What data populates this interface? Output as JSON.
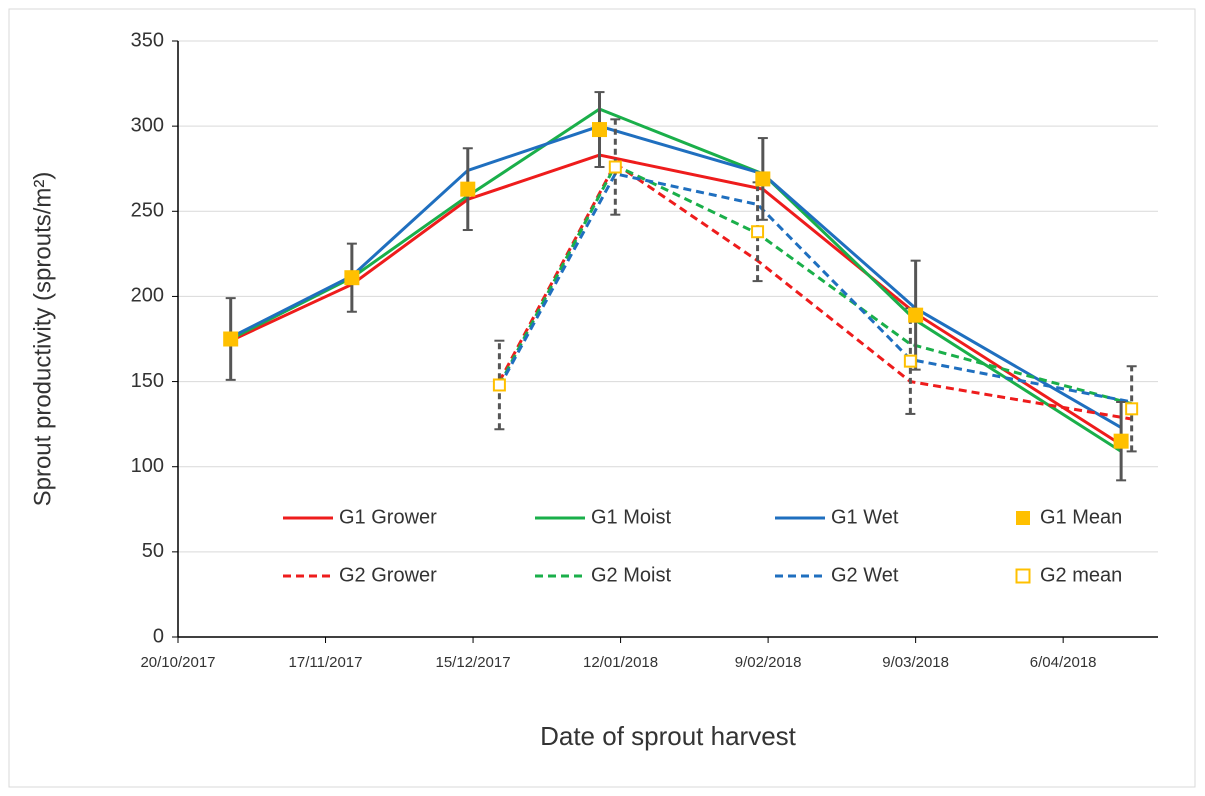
{
  "chart_data": {
    "type": "line",
    "ylabel": "Sprout productivity (sprouts/m²)",
    "xlabel": "Date of sprout harvest",
    "xlim": [
      "2017-10-20",
      "2018-04-24"
    ],
    "xticks": [
      {
        "value": "2017-10-20",
        "label": "20/10/2017"
      },
      {
        "value": "2017-11-17",
        "label": "17/11/2017"
      },
      {
        "value": "2017-12-15",
        "label": "15/12/2017"
      },
      {
        "value": "2018-01-12",
        "label": "12/01/2018"
      },
      {
        "value": "2018-02-09",
        "label": "9/02/2018"
      },
      {
        "value": "2018-03-09",
        "label": "9/03/2018"
      },
      {
        "value": "2018-04-06",
        "label": "6/04/2018"
      }
    ],
    "ylim": [
      0,
      350
    ],
    "yticks": [
      0,
      50,
      100,
      150,
      200,
      250,
      300,
      350
    ],
    "grid": true,
    "legend": "inside-bottom",
    "series": [
      {
        "name": "G1 Grower",
        "color": "#ee1c1c",
        "style": "solid",
        "x": [
          "2017-10-30",
          "2017-11-22",
          "2017-12-14",
          "2018-01-08",
          "2018-02-08",
          "2018-03-09",
          "2018-04-17"
        ],
        "values": [
          174,
          207,
          257,
          283,
          263,
          190,
          113
        ]
      },
      {
        "name": "G1 Moist",
        "color": "#1aaf4a",
        "style": "solid",
        "x": [
          "2017-10-30",
          "2017-11-22",
          "2017-12-14",
          "2018-01-08",
          "2018-02-08",
          "2018-03-09",
          "2018-04-17"
        ],
        "values": [
          175,
          211,
          259,
          310,
          272,
          186,
          109
        ]
      },
      {
        "name": "G1 Wet",
        "color": "#1f6fbf",
        "style": "solid",
        "x": [
          "2017-10-30",
          "2017-11-22",
          "2017-12-14",
          "2018-01-08",
          "2018-02-08",
          "2018-03-09",
          "2018-04-17"
        ],
        "values": [
          176,
          212,
          274,
          300,
          272,
          193,
          123
        ]
      },
      {
        "name": "G1 Mean",
        "color": "#ffc000",
        "style": "filled-square",
        "x": [
          "2017-10-30",
          "2017-11-22",
          "2017-12-14",
          "2018-01-08",
          "2018-02-08",
          "2018-03-09",
          "2018-04-17"
        ],
        "values": [
          175,
          211,
          263,
          298,
          269,
          189,
          115
        ],
        "errors": [
          24,
          20,
          24,
          22,
          24,
          32,
          23
        ]
      },
      {
        "name": "G2 Grower",
        "color": "#ee1c1c",
        "style": "dashed",
        "x": [
          "2017-12-20",
          "2018-01-11",
          "2018-02-07",
          "2018-03-08",
          "2018-04-19"
        ],
        "values": [
          150,
          278,
          221,
          150,
          128
        ]
      },
      {
        "name": "G2 Moist",
        "color": "#1aaf4a",
        "style": "dashed",
        "x": [
          "2017-12-20",
          "2018-01-11",
          "2018-02-07",
          "2018-03-08",
          "2018-04-19"
        ],
        "values": [
          148,
          277,
          237,
          172,
          137
        ]
      },
      {
        "name": "G2 Wet",
        "color": "#1f6fbf",
        "style": "dashed",
        "x": [
          "2017-12-20",
          "2018-01-11",
          "2018-02-07",
          "2018-03-08",
          "2018-04-19"
        ],
        "values": [
          147,
          272,
          254,
          163,
          138
        ]
      },
      {
        "name": "G2 mean",
        "color": "#ffc000",
        "style": "open-square",
        "x": [
          "2017-12-20",
          "2018-01-11",
          "2018-02-07",
          "2018-03-08",
          "2018-04-19"
        ],
        "values": [
          148,
          276,
          238,
          162,
          134
        ],
        "errors": [
          26,
          28,
          29,
          31,
          25
        ]
      }
    ]
  }
}
